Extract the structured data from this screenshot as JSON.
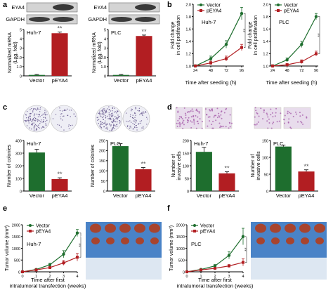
{
  "panel_letters": [
    "a",
    "b",
    "c",
    "d",
    "e",
    "f"
  ],
  "treatments": [
    "Vector",
    "pEYA4"
  ],
  "colors": {
    "vector": "#1e6e2e",
    "peya4": "#b21e22",
    "blot_band": "#3a3a3a",
    "blot_bg": "#d4d4d4",
    "colony": "#5a4a85",
    "invasion": "#a45aa8",
    "tumor": "#a8442e",
    "ruler_bg": "#4a83c7"
  },
  "sig_mark": "**",
  "blot": {
    "labels": [
      "EYA4",
      "GAPDH"
    ]
  },
  "chart_data": [
    {
      "panel": "a",
      "type": "bar",
      "cell": "Huh-7",
      "categories": [
        "Vector",
        "pEYA4"
      ],
      "values": [
        0.1,
        4.6
      ],
      "errors": [
        0.05,
        0.12
      ],
      "ylabel": "Normalized mRNA\n(Log, fold)",
      "ylim": [
        0,
        5
      ],
      "yticks": [
        0,
        1,
        2,
        3,
        4,
        5
      ],
      "significance": "**"
    },
    {
      "panel": "a",
      "type": "bar",
      "cell": "PLC",
      "categories": [
        "Vector",
        "pEYA4"
      ],
      "values": [
        0.1,
        4.3
      ],
      "errors": [
        0.05,
        0.1
      ],
      "ylabel": "Normalized mRNA\n(Log, fold)",
      "ylim": [
        0,
        5
      ],
      "yticks": [
        0,
        1,
        2,
        3,
        4,
        5
      ],
      "significance": "**"
    },
    {
      "panel": "b",
      "type": "line",
      "cell": "Huh-7",
      "x": [
        24,
        48,
        72,
        96
      ],
      "series": [
        {
          "name": "Vector",
          "values": [
            1.0,
            1.12,
            1.35,
            1.85
          ],
          "errors": [
            0.02,
            0.04,
            0.06,
            0.1
          ]
        },
        {
          "name": "pEYA4",
          "values": [
            1.0,
            1.05,
            1.12,
            1.3
          ],
          "errors": [
            0.02,
            0.03,
            0.04,
            0.05
          ]
        }
      ],
      "xlabel": "Time after seeding (h)",
      "ylabel": "Fold change\nin cell proliferation",
      "ylim": [
        1.0,
        2.0
      ],
      "yticks": [
        1.0,
        1.2,
        1.4,
        1.6,
        1.8,
        2.0
      ],
      "significance": "**"
    },
    {
      "panel": "b",
      "type": "line",
      "cell": "PLC",
      "x": [
        24,
        48,
        72,
        96
      ],
      "series": [
        {
          "name": "Vector",
          "values": [
            1.0,
            1.1,
            1.35,
            1.8
          ],
          "errors": [
            0.02,
            0.03,
            0.05,
            0.05
          ]
        },
        {
          "name": "pEYA4",
          "values": [
            1.0,
            1.02,
            1.07,
            1.2
          ],
          "errors": [
            0.02,
            0.02,
            0.03,
            0.04
          ]
        }
      ],
      "xlabel": "Time after seeding (h)",
      "ylabel": "Fold change\nin cell proliferation",
      "ylim": [
        1.0,
        2.0
      ],
      "yticks": [
        1.0,
        1.2,
        1.4,
        1.6,
        1.8,
        2.0
      ],
      "significance": "**"
    },
    {
      "panel": "c",
      "type": "bar",
      "cell": "Huh-7",
      "categories": [
        "Vector",
        "pEYA4"
      ],
      "values": [
        305,
        95
      ],
      "errors": [
        25,
        10
      ],
      "ylabel": "Number of colonies",
      "ylim": [
        0,
        400
      ],
      "yticks": [
        0,
        100,
        200,
        300,
        400
      ],
      "significance": "**"
    },
    {
      "panel": "c",
      "type": "bar",
      "cell": "PLC",
      "categories": [
        "Vector",
        "pEYA4"
      ],
      "values": [
        222,
        108
      ],
      "errors": [
        12,
        8
      ],
      "ylabel": "Number of colonies",
      "ylim": [
        0,
        250
      ],
      "yticks": [
        0,
        50,
        100,
        150,
        200,
        250
      ],
      "significance": "**"
    },
    {
      "panel": "d",
      "type": "bar",
      "cell": "Huh-7",
      "categories": [
        "Vector",
        "pEYA4"
      ],
      "values": [
        155,
        70
      ],
      "errors": [
        18,
        6
      ],
      "ylabel": "Number of\ninvasive cells",
      "ylim": [
        0,
        200
      ],
      "yticks": [
        0,
        50,
        100,
        150,
        200
      ],
      "significance": "**"
    },
    {
      "panel": "d",
      "type": "bar",
      "cell": "PLC",
      "categories": [
        "Vector",
        "pEYA4"
      ],
      "values": [
        132,
        58
      ],
      "errors": [
        4,
        5
      ],
      "ylabel": "Number of\ninvasive cells",
      "ylim": [
        0,
        150
      ],
      "yticks": [
        0,
        50,
        100,
        150
      ],
      "significance": "**"
    },
    {
      "panel": "e",
      "type": "line",
      "cell": "Huh-7",
      "x": [
        0,
        1,
        2,
        3,
        4
      ],
      "series": [
        {
          "name": "Vector",
          "values": [
            0,
            100,
            300,
            750,
            1650
          ],
          "errors": [
            0,
            30,
            60,
            150,
            150
          ]
        },
        {
          "name": "pEYA4",
          "values": [
            0,
            80,
            180,
            380,
            620
          ],
          "errors": [
            0,
            20,
            40,
            100,
            160
          ]
        }
      ],
      "xlabel": "Time after first\nintratumoral transfection (weeks)",
      "ylabel": "Tumor volume (mm³)",
      "ylim": [
        0,
        2000
      ],
      "yticks": [
        0,
        500,
        1000,
        1500,
        2000
      ],
      "significance": "**"
    },
    {
      "panel": "f",
      "type": "line",
      "cell": "PLC",
      "x": [
        0,
        1,
        2,
        3,
        4
      ],
      "series": [
        {
          "name": "Vector",
          "values": [
            0,
            100,
            250,
            700,
            1500
          ],
          "errors": [
            0,
            30,
            60,
            150,
            350
          ]
        },
        {
          "name": "pEYA4",
          "values": [
            0,
            80,
            150,
            250,
            400
          ],
          "errors": [
            0,
            20,
            30,
            60,
            150
          ]
        }
      ],
      "xlabel": "Time after first\nintratumoral transfection (weeks)",
      "ylabel": "Tumor volume (mm³)",
      "ylim": [
        0,
        2000
      ],
      "yticks": [
        0,
        500,
        1000,
        1500,
        2000
      ],
      "significance": "**"
    }
  ]
}
